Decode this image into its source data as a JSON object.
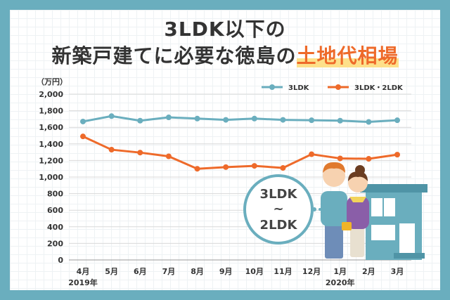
{
  "title_line1": "3LDK以下の",
  "title_line2_prefix": "新築戸建てに必要な徳島の",
  "title_line2_highlight": "土地代相場",
  "bubble": {
    "line1": "3LDK",
    "line2": "~",
    "line3": "2LDK"
  },
  "colors": {
    "frame": "#6aaebe",
    "series1": "#6aaebe",
    "series2": "#ee6a2a",
    "highlight": "#ee6a2a"
  },
  "chart_data": {
    "type": "line",
    "ylabel": "（万円）",
    "ylim": [
      0,
      2000
    ],
    "yticks": [
      "0",
      "200",
      "400",
      "600",
      "800",
      "1,000",
      "1,200",
      "1,400",
      "1,600",
      "1,800",
      "2,000"
    ],
    "categories": [
      "4月",
      "5月",
      "6月",
      "7月",
      "8月",
      "9月",
      "10月",
      "11月",
      "12月",
      "1月",
      "2月",
      "3月"
    ],
    "year_labels": [
      "2019年",
      "2020年"
    ],
    "legend_position": "top-right",
    "series": [
      {
        "name": "3LDK",
        "values": [
          1670,
          1735,
          1680,
          1720,
          1705,
          1690,
          1705,
          1690,
          1685,
          1680,
          1665,
          1685
        ]
      },
      {
        "name": "3LDK・2LDK",
        "values": [
          1490,
          1330,
          1295,
          1250,
          1100,
          1120,
          1135,
          1110,
          1275,
          1225,
          1220,
          1270
        ]
      }
    ]
  }
}
